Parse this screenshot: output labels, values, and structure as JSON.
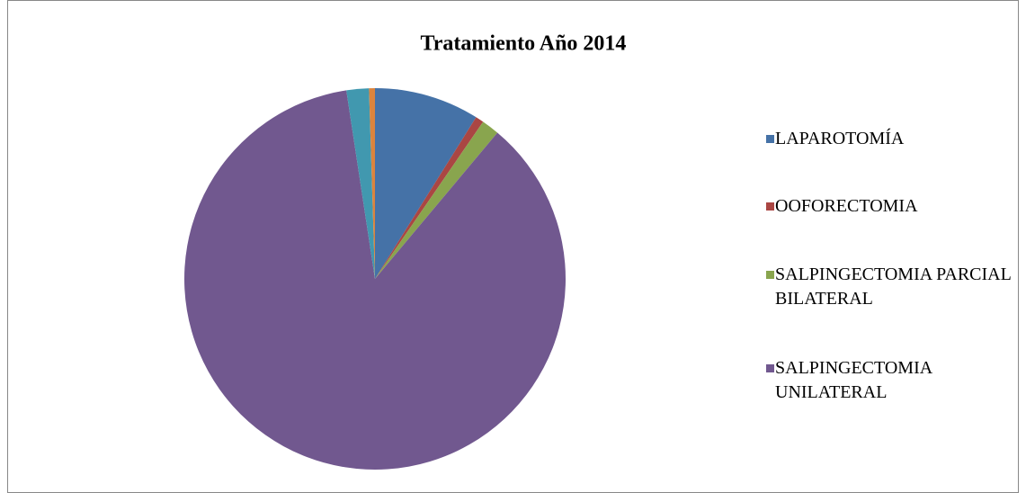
{
  "chart_data": {
    "type": "pie",
    "title": "Tratamiento Año 2014",
    "categories": [
      "LAPAROTOMÍA",
      "OOFORECTOMIA",
      "SALPINGECTOMIA PARCIAL BILATERAL",
      "SALPINGECTOMIA UNILATERAL",
      null,
      null
    ],
    "values": [
      8.9,
      0.7,
      1.5,
      86.5,
      1.9,
      0.5
    ],
    "colors": [
      "#4572a7",
      "#aa4643",
      "#89a54e",
      "#71588f",
      "#4198af",
      "#db843d"
    ],
    "legend": "right"
  }
}
